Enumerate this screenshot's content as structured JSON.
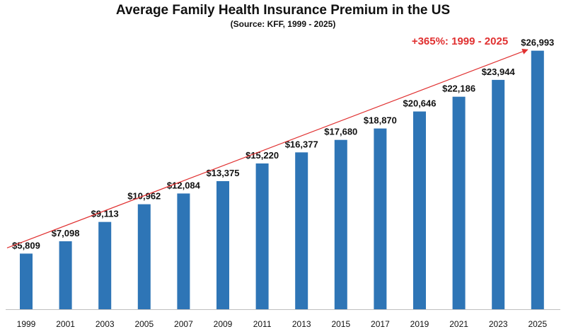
{
  "colors": {
    "bar": "#2E75B6",
    "trend": "#E03030",
    "annotation": "#E03030",
    "axis": "#BFBFBF"
  },
  "chart_data": {
    "type": "bar",
    "title": "Average Family Health Insurance Premium in the US",
    "subtitle": "(Source: KFF, 1999 - 2025)",
    "categories": [
      "1999",
      "2001",
      "2003",
      "2005",
      "2007",
      "2009",
      "2011",
      "2013",
      "2015",
      "2017",
      "2019",
      "2021",
      "2023",
      "2025"
    ],
    "values": [
      5809,
      7098,
      9113,
      10962,
      12084,
      13375,
      15220,
      16377,
      17680,
      18870,
      20646,
      22186,
      23944,
      26993
    ],
    "labels": [
      "$5,809",
      "$7,098",
      "$9,113",
      "$10,962",
      "$12,084",
      "$13,375",
      "$15,220",
      "$16,377",
      "$17,680",
      "$18,870",
      "$20,646",
      "$22,186",
      "$23,944",
      "$26,993"
    ],
    "annotation": "+365%: 1999 - 2025",
    "trend": {
      "from_value": 6400,
      "to_value": 27100
    },
    "xlabel": "",
    "ylabel": "",
    "ylim": [
      0,
      28000
    ],
    "grid": false
  }
}
